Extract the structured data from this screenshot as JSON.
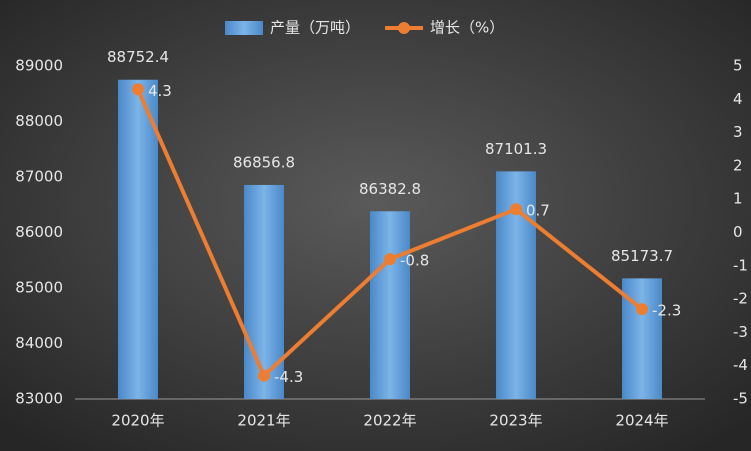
{
  "chart_data": {
    "type": "bar-line",
    "categories": [
      "2020年",
      "2021年",
      "2022年",
      "2023年",
      "2024年"
    ],
    "series": [
      {
        "name": "产量（万吨）",
        "type": "bar",
        "color": "#5b9bd5",
        "values": [
          88752.4,
          86856.8,
          86382.8,
          87101.3,
          85173.7
        ]
      },
      {
        "name": "增长（%）",
        "type": "line",
        "axis": "y2",
        "color": "#ed7d31",
        "values": [
          4.3,
          -4.3,
          -0.8,
          0.7,
          -2.3
        ]
      }
    ],
    "ylim": [
      83000,
      89000
    ],
    "yticks": [
      83000,
      84000,
      85000,
      86000,
      87000,
      88000,
      89000
    ],
    "y2lim": [
      -5,
      5
    ],
    "y2ticks": [
      -5,
      -4,
      -3,
      -2,
      -1,
      0,
      1,
      2,
      3,
      4,
      5
    ],
    "grid": false,
    "legend": "top"
  }
}
